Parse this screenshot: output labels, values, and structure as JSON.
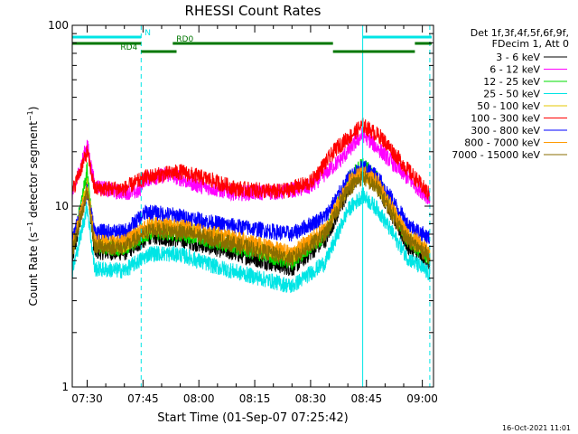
{
  "chart_data": {
    "type": "line",
    "title": "RHESSI Count Rates",
    "xlabel": "Start Time (01-Sep-07 07:25:42)",
    "ylabel": "Count Rate (s",
    "ylabel_exp": "−1",
    "ylabel_mid": " detector segment",
    "ylabel_end": ")",
    "y_scale": "log",
    "ylim": [
      1,
      100
    ],
    "y_ticks": [
      {
        "value": 1,
        "label": "1"
      },
      {
        "value": 10,
        "label": "10"
      },
      {
        "value": 100,
        "label": "100"
      }
    ],
    "xlim": [
      "07:26:00",
      "09:03:00"
    ],
    "x_ticks": [
      {
        "time": "07:30",
        "label": "07:30"
      },
      {
        "time": "07:45",
        "label": "07:45"
      },
      {
        "time": "08:00",
        "label": "08:00"
      },
      {
        "time": "08:15",
        "label": "08:15"
      },
      {
        "time": "08:30",
        "label": "08:30"
      },
      {
        "time": "08:45",
        "label": "08:45"
      },
      {
        "time": "09:00",
        "label": "09:00"
      }
    ],
    "legend_header": [
      "Det 1f,3f,4f,5f,6f,9f,",
      "FDecim 1, Att 0"
    ],
    "legend_position": "right",
    "series": [
      {
        "name": "3 - 6 keV",
        "color": "#000000",
        "keyframes": [
          [
            "07:26",
            5.0
          ],
          [
            "07:30",
            13.0
          ],
          [
            "07:32",
            5.6
          ],
          [
            "07:40",
            5.5
          ],
          [
            "07:47",
            6.8
          ],
          [
            "07:55",
            6.5
          ],
          [
            "08:05",
            5.8
          ],
          [
            "08:25",
            4.5
          ],
          [
            "08:34",
            6.5
          ],
          [
            "08:40",
            12.0
          ],
          [
            "08:44",
            16.0
          ],
          [
            "08:48",
            13.0
          ],
          [
            "08:56",
            6.0
          ],
          [
            "09:02",
            4.8
          ]
        ]
      },
      {
        "name": "6 - 12 keV",
        "color": "#ff00ff",
        "keyframes": [
          [
            "07:26",
            11.5
          ],
          [
            "07:30",
            22.0
          ],
          [
            "07:32",
            13.0
          ],
          [
            "07:38",
            12.0
          ],
          [
            "07:44",
            12.0
          ],
          [
            "07:45",
            14.0
          ],
          [
            "07:52",
            15.0
          ],
          [
            "08:00",
            13.0
          ],
          [
            "08:10",
            11.8
          ],
          [
            "08:22",
            12.0
          ],
          [
            "08:30",
            12.8
          ],
          [
            "08:38",
            18.0
          ],
          [
            "08:44",
            25.0
          ],
          [
            "08:48",
            21.0
          ],
          [
            "08:55",
            15.0
          ],
          [
            "09:02",
            11.0
          ]
        ]
      },
      {
        "name": "12 - 25 keV",
        "color": "#00dd00",
        "keyframes": [
          [
            "07:26",
            5.5
          ],
          [
            "07:30",
            16.0
          ],
          [
            "07:32",
            6.0
          ],
          [
            "07:40",
            5.8
          ],
          [
            "07:47",
            7.2
          ],
          [
            "07:55",
            7.0
          ],
          [
            "08:05",
            6.3
          ],
          [
            "08:25",
            4.9
          ],
          [
            "08:34",
            7.0
          ],
          [
            "08:40",
            14.0
          ],
          [
            "08:44",
            17.0
          ],
          [
            "08:48",
            14.0
          ],
          [
            "08:56",
            6.5
          ],
          [
            "09:02",
            5.2
          ]
        ]
      },
      {
        "name": "25 - 50 keV",
        "color": "#00e5e5",
        "keyframes": [
          [
            "07:26",
            4.3
          ],
          [
            "07:30",
            10.0
          ],
          [
            "07:32",
            4.5
          ],
          [
            "07:40",
            4.4
          ],
          [
            "07:47",
            5.5
          ],
          [
            "07:55",
            5.4
          ],
          [
            "08:05",
            4.6
          ],
          [
            "08:25",
            3.6
          ],
          [
            "08:34",
            4.9
          ],
          [
            "08:40",
            9.5
          ],
          [
            "08:44",
            11.5
          ],
          [
            "08:48",
            9.6
          ],
          [
            "08:56",
            5.2
          ],
          [
            "09:02",
            4.2
          ]
        ]
      },
      {
        "name": "50 - 100 keV",
        "color": "#e5c700",
        "keyframes": [
          [
            "07:26",
            5.9
          ],
          [
            "07:30",
            13.0
          ],
          [
            "07:32",
            6.3
          ],
          [
            "07:40",
            6.1
          ],
          [
            "07:47",
            7.7
          ],
          [
            "07:55",
            7.5
          ],
          [
            "08:05",
            6.8
          ],
          [
            "08:25",
            5.3
          ],
          [
            "08:34",
            7.3
          ],
          [
            "08:40",
            13.0
          ],
          [
            "08:44",
            15.0
          ],
          [
            "08:48",
            13.0
          ],
          [
            "08:56",
            6.8
          ],
          [
            "09:02",
            5.5
          ]
        ]
      },
      {
        "name": "100 - 300 keV",
        "color": "#ff0000",
        "keyframes": [
          [
            "07:26",
            12.0
          ],
          [
            "07:30",
            20.0
          ],
          [
            "07:32",
            12.5
          ],
          [
            "07:40",
            12.5
          ],
          [
            "07:46",
            14.5
          ],
          [
            "07:55",
            15.5
          ],
          [
            "08:03",
            14.0
          ],
          [
            "08:10",
            12.5
          ],
          [
            "08:22",
            12.0
          ],
          [
            "08:30",
            13.5
          ],
          [
            "08:37",
            21.0
          ],
          [
            "08:44",
            28.0
          ],
          [
            "08:49",
            24.0
          ],
          [
            "08:56",
            16.0
          ],
          [
            "09:02",
            11.5
          ]
        ]
      },
      {
        "name": "300 - 800 keV",
        "color": "#0000ff",
        "keyframes": [
          [
            "07:26",
            6.5
          ],
          [
            "07:30",
            12.0
          ],
          [
            "07:32",
            7.2
          ],
          [
            "07:40",
            7.2
          ],
          [
            "07:46",
            9.3
          ],
          [
            "07:55",
            8.8
          ],
          [
            "08:05",
            8.0
          ],
          [
            "08:25",
            7.0
          ],
          [
            "08:34",
            8.8
          ],
          [
            "08:40",
            14.0
          ],
          [
            "08:44",
            16.5
          ],
          [
            "08:48",
            14.5
          ],
          [
            "08:56",
            8.0
          ],
          [
            "09:02",
            6.6
          ]
        ]
      },
      {
        "name": "800 - 7000 keV",
        "color": "#ff9900",
        "keyframes": [
          [
            "07:26",
            6.0
          ],
          [
            "07:30",
            12.5
          ],
          [
            "07:32",
            6.4
          ],
          [
            "07:40",
            6.3
          ],
          [
            "07:47",
            7.9
          ],
          [
            "07:55",
            7.7
          ],
          [
            "08:05",
            7.0
          ],
          [
            "08:25",
            5.5
          ],
          [
            "08:34",
            7.5
          ],
          [
            "08:40",
            13.5
          ],
          [
            "08:44",
            15.5
          ],
          [
            "08:48",
            13.5
          ],
          [
            "08:56",
            7.0
          ],
          [
            "09:02",
            5.7
          ]
        ]
      },
      {
        "name": "7000 - 15000 keV",
        "color": "#8a6d00",
        "keyframes": [
          [
            "07:26",
            5.6
          ],
          [
            "07:30",
            12.0
          ],
          [
            "07:32",
            6.0
          ],
          [
            "07:40",
            5.9
          ],
          [
            "07:47",
            7.4
          ],
          [
            "07:55",
            7.2
          ],
          [
            "08:05",
            6.5
          ],
          [
            "08:25",
            5.1
          ],
          [
            "08:34",
            7.0
          ],
          [
            "08:40",
            12.5
          ],
          [
            "08:44",
            14.5
          ],
          [
            "08:48",
            12.5
          ],
          [
            "08:56",
            6.5
          ],
          [
            "09:02",
            5.3
          ]
        ]
      }
    ],
    "event_lines": [
      {
        "time": "07:26:00",
        "style": "solid",
        "color": "#00e5e5"
      },
      {
        "time": "07:44:30",
        "style": "dashed",
        "color": "#00e5e5"
      },
      {
        "time": "08:44:00",
        "style": "solid",
        "color": "#00e5e5"
      },
      {
        "time": "09:02:00",
        "style": "dashed",
        "color": "#00e5e5"
      }
    ],
    "status_bars": [
      {
        "label": "",
        "color": "#00e5e5",
        "level": 1,
        "start": "07:26:00",
        "end": "07:44:30"
      },
      {
        "label": "N",
        "color": "#00e5e5",
        "level": 1,
        "start": "07:44:30",
        "end": "07:44:30"
      },
      {
        "label": "",
        "color": "#00e5e5",
        "level": 1,
        "start": "08:44:00",
        "end": "09:02:30"
      },
      {
        "label": "",
        "color": "#007700",
        "level": 2,
        "start": "07:26:00",
        "end": "07:44:30"
      },
      {
        "label": "RD0",
        "color": "#007700",
        "level": 2,
        "start": "07:53:00",
        "end": "08:36:00"
      },
      {
        "label": "",
        "color": "#007700",
        "level": 2,
        "start": "08:58:00",
        "end": "09:02:30"
      },
      {
        "label": "RD4",
        "color": "#007700",
        "level": 3,
        "start": "07:44:30",
        "end": "07:54:00"
      },
      {
        "label": "",
        "color": "#007700",
        "level": 3,
        "start": "08:36:00",
        "end": "08:58:00"
      }
    ],
    "footer": "16-Oct-2021 11:01",
    "grid": false
  }
}
